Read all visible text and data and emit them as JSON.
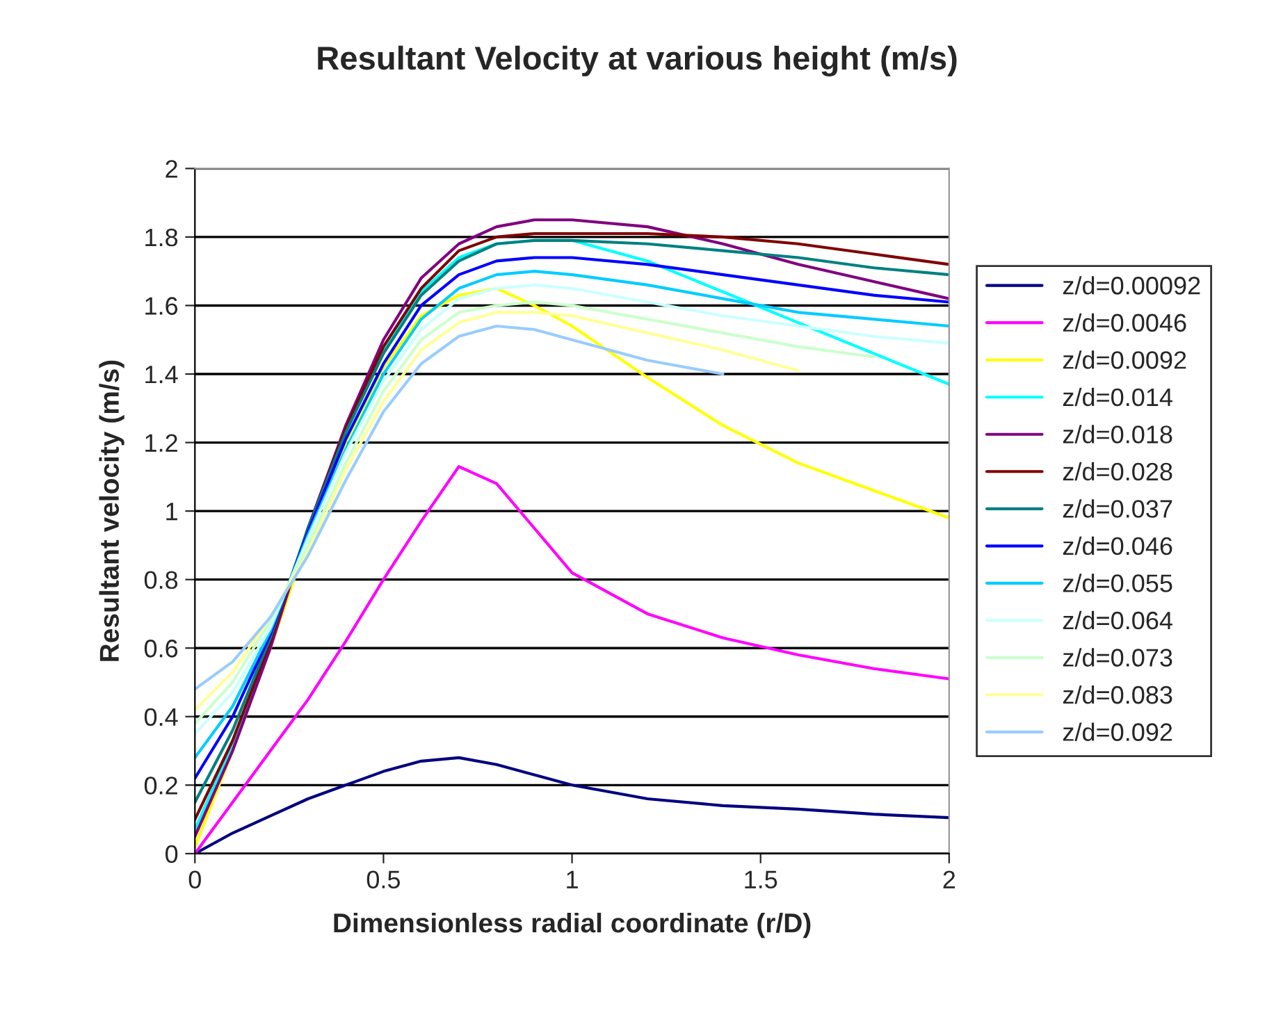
{
  "chart_data": {
    "type": "line",
    "title": "Resultant Velocity at various height (m/s)",
    "xlabel": "Dimensionless radial coordinate (r/D)",
    "ylabel": "Resultant velocity (m/s)",
    "x": [
      0,
      0.1,
      0.2,
      0.3,
      0.4,
      0.5,
      0.6,
      0.7,
      0.8,
      0.9,
      1.0,
      1.2,
      1.4,
      1.6,
      1.8,
      2.0
    ],
    "xlim": [
      0,
      2
    ],
    "xticks": [
      0,
      0.5,
      1,
      1.5,
      2
    ],
    "ylim": [
      0,
      2
    ],
    "yticks": [
      0,
      0.2,
      0.4,
      0.6,
      0.8,
      1,
      1.2,
      1.4,
      1.6,
      1.8,
      2
    ],
    "grid": "y",
    "legend": "right",
    "marker": "none",
    "line_style": "solid",
    "series": [
      {
        "name": "z/d=0.00092",
        "color": "#000080",
        "values": [
          0,
          0.06,
          0.11,
          0.16,
          0.2,
          0.24,
          0.27,
          0.28,
          0.26,
          0.23,
          0.2,
          0.16,
          0.14,
          0.13,
          0.115,
          0.105
        ]
      },
      {
        "name": "z/d=0.0046",
        "color": "#ff00ff",
        "values": [
          0,
          0.15,
          0.3,
          0.45,
          0.62,
          0.8,
          0.97,
          1.13,
          1.08,
          0.95,
          0.82,
          0.7,
          0.63,
          0.58,
          0.54,
          0.51
        ]
      },
      {
        "name": "z/d=0.0092",
        "color": "#ffff00",
        "values": [
          0.02,
          0.3,
          0.6,
          0.92,
          1.2,
          1.42,
          1.57,
          1.63,
          1.65,
          1.6,
          1.54,
          1.39,
          1.25,
          1.14,
          1.06,
          0.98
        ]
      },
      {
        "name": "z/d=0.014",
        "color": "#00ffff",
        "values": [
          0.07,
          0.32,
          0.62,
          0.94,
          1.23,
          1.47,
          1.64,
          1.74,
          1.78,
          1.79,
          1.79,
          1.73,
          1.64,
          1.55,
          1.46,
          1.37
        ]
      },
      {
        "name": "z/d=0.018",
        "color": "#800080",
        "values": [
          0.05,
          0.3,
          0.6,
          0.95,
          1.25,
          1.5,
          1.68,
          1.78,
          1.83,
          1.85,
          1.85,
          1.83,
          1.78,
          1.72,
          1.67,
          1.62
        ]
      },
      {
        "name": "z/d=0.028",
        "color": "#800000",
        "values": [
          0.1,
          0.33,
          0.62,
          0.95,
          1.24,
          1.48,
          1.65,
          1.76,
          1.8,
          1.81,
          1.81,
          1.81,
          1.8,
          1.78,
          1.75,
          1.72
        ]
      },
      {
        "name": "z/d=0.037",
        "color": "#008080",
        "values": [
          0.15,
          0.36,
          0.63,
          0.95,
          1.23,
          1.46,
          1.63,
          1.73,
          1.78,
          1.79,
          1.79,
          1.78,
          1.76,
          1.74,
          1.71,
          1.69
        ]
      },
      {
        "name": "z/d=0.046",
        "color": "#0000ff",
        "values": [
          0.22,
          0.4,
          0.64,
          0.94,
          1.21,
          1.43,
          1.6,
          1.69,
          1.73,
          1.74,
          1.74,
          1.72,
          1.69,
          1.66,
          1.63,
          1.61
        ]
      },
      {
        "name": "z/d=0.055",
        "color": "#00ccff",
        "values": [
          0.28,
          0.43,
          0.65,
          0.93,
          1.18,
          1.4,
          1.56,
          1.65,
          1.69,
          1.7,
          1.69,
          1.66,
          1.62,
          1.58,
          1.56,
          1.54
        ]
      },
      {
        "name": "z/d=0.064",
        "color": "#ccffff",
        "values": [
          0.35,
          0.47,
          0.66,
          0.92,
          1.17,
          1.38,
          1.53,
          1.62,
          1.65,
          1.66,
          1.65,
          1.61,
          1.57,
          1.54,
          1.51,
          1.49
        ]
      },
      {
        "name": "z/d=0.073",
        "color": "#ccffcc",
        "values": [
          0.38,
          0.5,
          0.68,
          0.9,
          1.14,
          1.35,
          1.5,
          1.58,
          1.6,
          1.61,
          1.6,
          1.56,
          1.52,
          1.48,
          1.45,
          null
        ]
      },
      {
        "name": "z/d=0.083",
        "color": "#ffff99",
        "values": [
          0.42,
          0.53,
          0.69,
          0.88,
          1.12,
          1.32,
          1.47,
          1.55,
          1.58,
          1.58,
          1.57,
          1.52,
          1.47,
          1.41,
          null,
          null
        ]
      },
      {
        "name": "z/d=0.092",
        "color": "#99ccff",
        "values": [
          0.48,
          0.56,
          0.69,
          0.87,
          1.09,
          1.29,
          1.43,
          1.51,
          1.54,
          1.53,
          1.5,
          1.44,
          1.4,
          null,
          null,
          null
        ]
      }
    ]
  }
}
